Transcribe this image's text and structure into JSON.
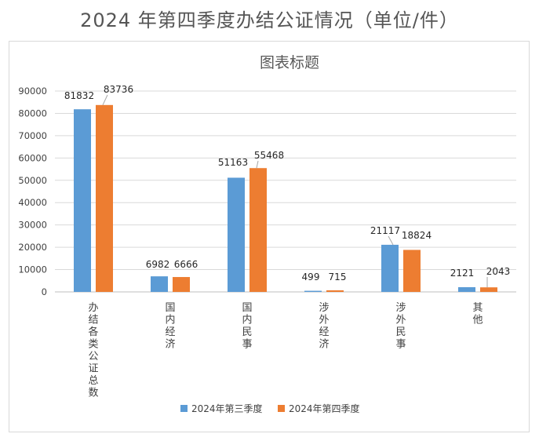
{
  "page_title": "2024 年第四季度办结公证情况（单位/件）",
  "chart_data": {
    "type": "bar",
    "title": "图表标题",
    "categories": [
      "办结各类公证总数",
      "国内经济",
      "国内民事",
      "涉外经济",
      "涉外民事",
      "其他"
    ],
    "series": [
      {
        "name": "2024年第三季度",
        "color": "#5b9bd5",
        "values": [
          81832,
          6982,
          51163,
          499,
          21117,
          2121
        ]
      },
      {
        "name": "2024年第四季度",
        "color": "#ed7d31",
        "values": [
          83736,
          6666,
          55468,
          715,
          18824,
          2043
        ]
      }
    ],
    "yticks": [
      0,
      10000,
      20000,
      30000,
      40000,
      50000,
      60000,
      70000,
      80000,
      90000
    ],
    "ylim": [
      0,
      90000
    ],
    "xlabel": "",
    "ylabel": "",
    "grid": true,
    "legend": "bottom"
  }
}
